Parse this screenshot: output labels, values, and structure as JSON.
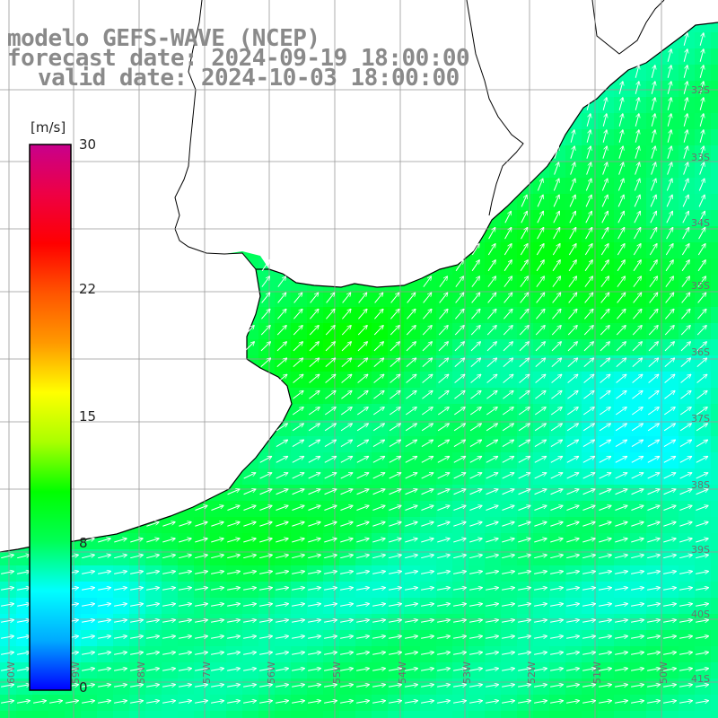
{
  "header": {
    "line1": "modelo GEFS-WAVE (NCEP)",
    "line2": "forecast date: 2024-09-19 18:00:00",
    "line3": "valid date: 2024-10-03 18:00:00"
  },
  "colorbar": {
    "unit": "[m/s]",
    "min": 0,
    "max": 30,
    "ticks": [
      {
        "value": 30,
        "label": "30"
      },
      {
        "value": 22,
        "label": "22"
      },
      {
        "value": 15,
        "label": "15"
      },
      {
        "value": 8,
        "label": "8"
      },
      {
        "value": 0,
        "label": "0"
      }
    ],
    "gradient_stops": [
      "#0000ff",
      "#00aaff",
      "#00ffff",
      "#00ff55",
      "#00ff00",
      "#aaff00",
      "#ffff00",
      "#ff9900",
      "#ff5500",
      "#ff0000",
      "#ee0044",
      "#c8008c"
    ]
  },
  "map": {
    "land_color": "#ffffff",
    "coast_color": "#000000",
    "grid_color": "#999999",
    "lat_labels": [
      "32S",
      "33S",
      "34S",
      "35S",
      "36S",
      "37S",
      "38S",
      "39S",
      "40S",
      "41S"
    ],
    "lon_labels": [
      "60W",
      "59W",
      "58W",
      "57W",
      "56W",
      "55W",
      "54W",
      "53W",
      "52W",
      "51W",
      "50W"
    ],
    "wind_field_description_levels_m_s": {
      "low": 5,
      "mid": 8,
      "high": 12
    }
  }
}
